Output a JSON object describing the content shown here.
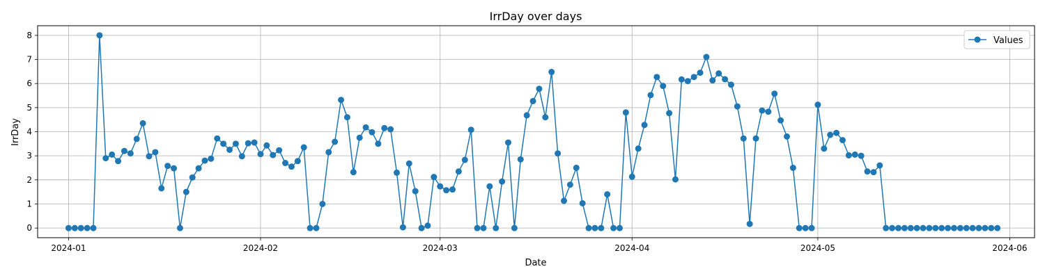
{
  "chart_data": {
    "type": "line",
    "title": "IrrDay over days",
    "xlabel": "Date",
    "ylabel": "IrrDay",
    "x_start": "2024-01-01",
    "x_tick_labels": [
      "2024-01",
      "2024-02",
      "2024-03",
      "2024-04",
      "2024-05",
      "2024-06"
    ],
    "x_tick_dates": [
      "2024-01-01",
      "2024-02-01",
      "2024-03-01",
      "2024-04-01",
      "2024-05-01",
      "2024-06-01"
    ],
    "y_ticks": [
      0,
      1,
      2,
      3,
      4,
      5,
      6,
      7,
      8
    ],
    "xlim": [
      "2023-12-27",
      "2024-06-05"
    ],
    "ylim": [
      -0.4,
      8.4
    ],
    "grid": true,
    "legend_position": "top-right",
    "series": [
      {
        "name": "Values",
        "color": "#1f77b4",
        "marker": "circle",
        "values": [
          0,
          0,
          0,
          0,
          0,
          8.0,
          2.9,
          3.05,
          2.78,
          3.2,
          3.1,
          3.7,
          4.35,
          2.98,
          3.15,
          1.65,
          2.58,
          2.48,
          0,
          1.5,
          2.1,
          2.48,
          2.8,
          2.88,
          3.72,
          3.5,
          3.25,
          3.5,
          2.98,
          3.52,
          3.55,
          3.07,
          3.43,
          3.03,
          3.23,
          2.7,
          2.55,
          2.78,
          3.35,
          0,
          0,
          1.0,
          3.15,
          3.58,
          5.32,
          4.6,
          2.32,
          3.75,
          4.18,
          3.98,
          3.5,
          4.15,
          4.1,
          2.3,
          0.03,
          2.68,
          1.53,
          0,
          0.1,
          2.12,
          1.73,
          1.57,
          1.6,
          2.35,
          2.83,
          4.08,
          0,
          0,
          1.73,
          0,
          1.93,
          3.55,
          0,
          2.85,
          4.68,
          5.27,
          5.78,
          4.6,
          6.48,
          3.1,
          1.13,
          1.8,
          2.5,
          1.03,
          0,
          0,
          0,
          1.4,
          0,
          0,
          4.8,
          2.13,
          3.3,
          4.28,
          5.52,
          6.27,
          5.9,
          4.77,
          2.02,
          6.17,
          6.1,
          6.27,
          6.45,
          7.1,
          6.13,
          6.42,
          6.18,
          5.95,
          5.05,
          3.72,
          0.17,
          3.72,
          4.88,
          4.83,
          5.58,
          4.47,
          3.8,
          2.5,
          0,
          0,
          0,
          5.12,
          3.3,
          3.87,
          3.95,
          3.65,
          3.02,
          3.05,
          3.0,
          2.35,
          2.32,
          2.6,
          0,
          0,
          0,
          0,
          0,
          0,
          0,
          0,
          0,
          0,
          0,
          0,
          0,
          0,
          0,
          0,
          0,
          0,
          0
        ]
      }
    ]
  }
}
